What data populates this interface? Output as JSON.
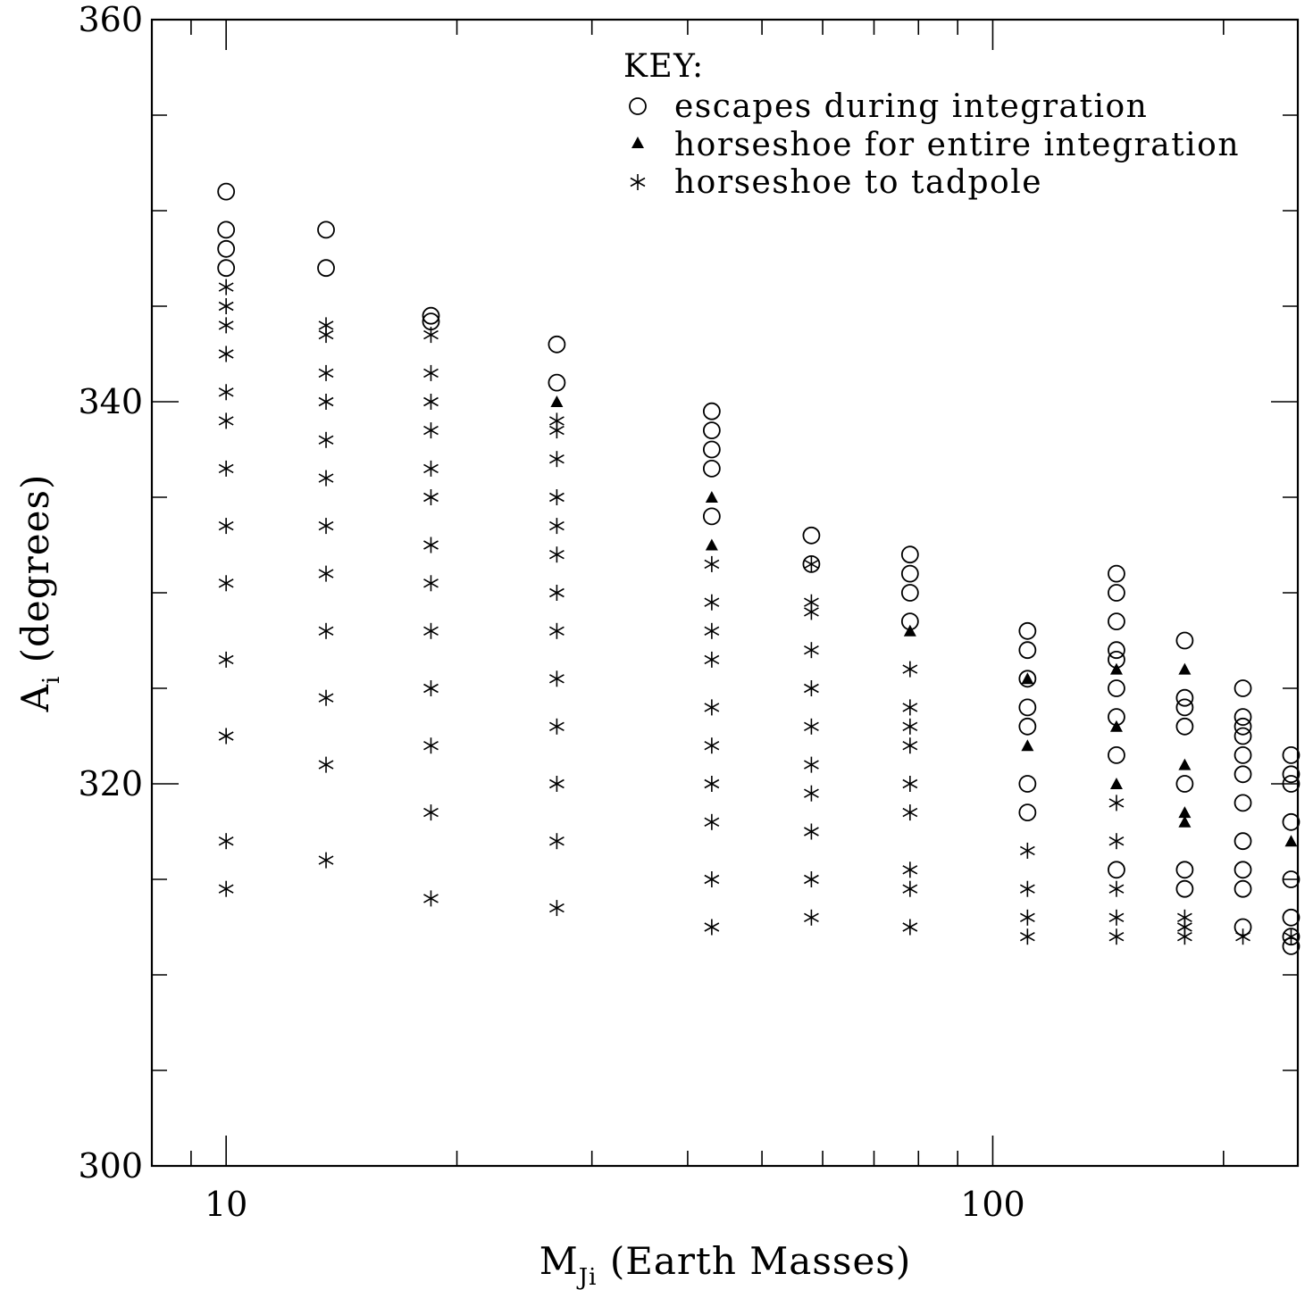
{
  "chart_data": {
    "type": "scatter",
    "xlabel": "M",
    "xlabel_sub": "Ji",
    "xlabel_rest": " (Earth Masses)",
    "ylabel": "A",
    "ylabel_sub": "i",
    "ylabel_rest": " (degrees)",
    "x_scale": "log",
    "xlim": [
      8.0,
      250
    ],
    "ylim": [
      300,
      360
    ],
    "x_tick_labels": [
      {
        "value": 10,
        "label": "10"
      },
      {
        "value": 100,
        "label": "100"
      }
    ],
    "x_minor_ticks": [
      9,
      20,
      30,
      40,
      50,
      60,
      70,
      80,
      90,
      200
    ],
    "y_tick_labels": [
      {
        "value": 300,
        "label": "300"
      },
      {
        "value": 320,
        "label": "320"
      },
      {
        "value": 340,
        "label": "340"
      },
      {
        "value": 360,
        "label": "360"
      }
    ],
    "y_minor_ticks": [
      305,
      310,
      315,
      325,
      330,
      335,
      345,
      350,
      355
    ],
    "legend": {
      "title": "KEY:",
      "placement": "top-right",
      "entries": [
        {
          "marker": "circle",
          "label": "escapes during integration"
        },
        {
          "marker": "triangle",
          "label": "horseshoe for entire integration"
        },
        {
          "marker": "star",
          "label": "horseshoe to tadpole"
        }
      ]
    },
    "series": [
      {
        "marker": "circle",
        "points": [
          [
            10,
            351
          ],
          [
            10,
            349
          ],
          [
            10,
            348
          ],
          [
            10,
            347
          ],
          [
            13.5,
            349
          ],
          [
            13.5,
            347
          ],
          [
            18.5,
            344.5
          ],
          [
            18.5,
            344.2
          ],
          [
            27,
            343
          ],
          [
            27,
            341
          ],
          [
            43,
            339.5
          ],
          [
            43,
            338.5
          ],
          [
            43,
            337.5
          ],
          [
            43,
            336.5
          ],
          [
            43,
            334
          ],
          [
            58,
            333
          ],
          [
            58,
            331.5
          ],
          [
            78,
            332
          ],
          [
            78,
            331
          ],
          [
            78,
            330
          ],
          [
            78,
            328.5
          ],
          [
            111,
            328
          ],
          [
            111,
            327
          ],
          [
            111,
            325.5
          ],
          [
            111,
            324
          ],
          [
            111,
            323
          ],
          [
            111,
            320
          ],
          [
            111,
            318.5
          ],
          [
            145,
            331
          ],
          [
            145,
            330
          ],
          [
            145,
            328.5
          ],
          [
            145,
            327
          ],
          [
            145,
            326.5
          ],
          [
            145,
            325
          ],
          [
            145,
            323.5
          ],
          [
            145,
            321.5
          ],
          [
            145,
            315.5
          ],
          [
            178,
            327.5
          ],
          [
            178,
            324.5
          ],
          [
            178,
            324
          ],
          [
            178,
            323
          ],
          [
            178,
            320
          ],
          [
            178,
            315.5
          ],
          [
            178,
            314.5
          ],
          [
            212,
            325
          ],
          [
            212,
            323.5
          ],
          [
            212,
            323
          ],
          [
            212,
            322.5
          ],
          [
            212,
            321.5
          ],
          [
            212,
            320.5
          ],
          [
            212,
            319
          ],
          [
            212,
            317
          ],
          [
            212,
            315.5
          ],
          [
            212,
            314.5
          ],
          [
            212,
            312.5
          ],
          [
            245,
            321.5
          ],
          [
            245,
            320.5
          ],
          [
            245,
            320
          ],
          [
            245,
            318
          ],
          [
            245,
            315
          ],
          [
            245,
            313
          ],
          [
            245,
            312
          ],
          [
            245,
            311.5
          ]
        ]
      },
      {
        "marker": "triangle",
        "points": [
          [
            27,
            340
          ],
          [
            43,
            335
          ],
          [
            43,
            332.5
          ],
          [
            78,
            328
          ],
          [
            111,
            325.5
          ],
          [
            111,
            322
          ],
          [
            145,
            326
          ],
          [
            145,
            323
          ],
          [
            145,
            320
          ],
          [
            178,
            326
          ],
          [
            178,
            321
          ],
          [
            178,
            318.5
          ],
          [
            178,
            318
          ],
          [
            245,
            317
          ]
        ]
      },
      {
        "marker": "star",
        "points": [
          [
            10,
            346
          ],
          [
            10,
            345
          ],
          [
            10,
            344
          ],
          [
            10,
            342.5
          ],
          [
            10,
            340.5
          ],
          [
            10,
            339
          ],
          [
            10,
            336.5
          ],
          [
            10,
            333.5
          ],
          [
            10,
            330.5
          ],
          [
            10,
            326.5
          ],
          [
            10,
            322.5
          ],
          [
            10,
            317
          ],
          [
            10,
            314.5
          ],
          [
            13.5,
            344
          ],
          [
            13.5,
            343.5
          ],
          [
            13.5,
            341.5
          ],
          [
            13.5,
            340
          ],
          [
            13.5,
            338
          ],
          [
            13.5,
            336
          ],
          [
            13.5,
            333.5
          ],
          [
            13.5,
            331
          ],
          [
            13.5,
            328
          ],
          [
            13.5,
            324.5
          ],
          [
            13.5,
            321
          ],
          [
            13.5,
            316
          ],
          [
            18.5,
            343.5
          ],
          [
            18.5,
            341.5
          ],
          [
            18.5,
            340
          ],
          [
            18.5,
            338.5
          ],
          [
            18.5,
            336.5
          ],
          [
            18.5,
            335
          ],
          [
            18.5,
            332.5
          ],
          [
            18.5,
            330.5
          ],
          [
            18.5,
            328
          ],
          [
            18.5,
            325
          ],
          [
            18.5,
            322
          ],
          [
            18.5,
            318.5
          ],
          [
            18.5,
            314
          ],
          [
            27,
            339
          ],
          [
            27,
            338.5
          ],
          [
            27,
            337
          ],
          [
            27,
            335
          ],
          [
            27,
            333.5
          ],
          [
            27,
            332
          ],
          [
            27,
            330
          ],
          [
            27,
            328
          ],
          [
            27,
            325.5
          ],
          [
            27,
            323
          ],
          [
            27,
            320
          ],
          [
            27,
            317
          ],
          [
            27,
            313.5
          ],
          [
            43,
            331.5
          ],
          [
            43,
            329.5
          ],
          [
            43,
            328
          ],
          [
            43,
            326.5
          ],
          [
            43,
            324
          ],
          [
            43,
            322
          ],
          [
            43,
            320
          ],
          [
            43,
            318
          ],
          [
            43,
            315
          ],
          [
            43,
            312.5
          ],
          [
            58,
            331.5
          ],
          [
            58,
            329.5
          ],
          [
            58,
            329
          ],
          [
            58,
            327
          ],
          [
            58,
            325
          ],
          [
            58,
            323
          ],
          [
            58,
            321
          ],
          [
            58,
            319.5
          ],
          [
            58,
            317.5
          ],
          [
            58,
            315
          ],
          [
            58,
            313
          ],
          [
            78,
            326
          ],
          [
            78,
            324
          ],
          [
            78,
            323
          ],
          [
            78,
            322
          ],
          [
            78,
            320
          ],
          [
            78,
            318.5
          ],
          [
            78,
            315.5
          ],
          [
            78,
            314.5
          ],
          [
            78,
            312.5
          ],
          [
            111,
            316.5
          ],
          [
            111,
            314.5
          ],
          [
            111,
            313
          ],
          [
            111,
            312
          ],
          [
            145,
            319
          ],
          [
            145,
            317
          ],
          [
            145,
            314.5
          ],
          [
            145,
            313
          ],
          [
            145,
            312
          ],
          [
            178,
            313
          ],
          [
            178,
            312.5
          ],
          [
            178,
            312
          ],
          [
            212,
            312
          ],
          [
            245,
            312
          ]
        ]
      }
    ]
  }
}
